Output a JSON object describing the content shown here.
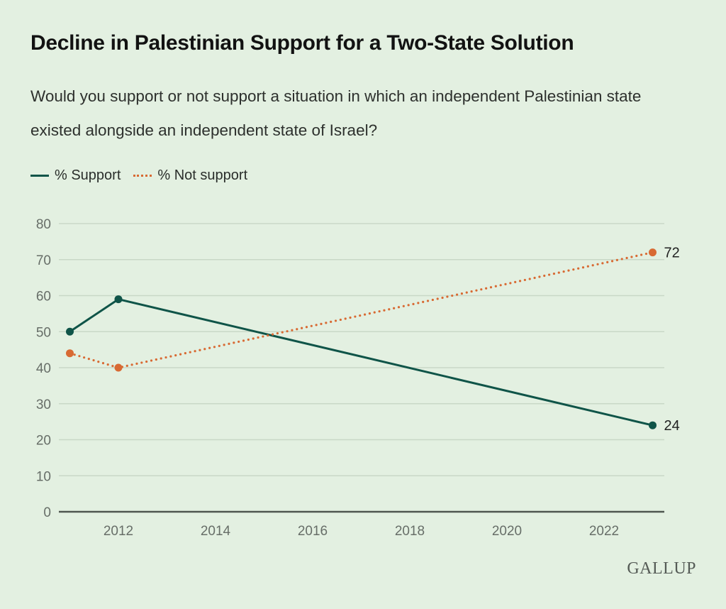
{
  "chart_data": {
    "type": "line",
    "title": "Decline in Palestinian Support for a Two-State Solution",
    "subtitle": "Would you support or not support a situation in which an independent Palestinian state existed alongside an independent state of Israel?",
    "xlabel": "",
    "ylabel": "",
    "x_ticks": [
      "2012",
      "2014",
      "2016",
      "2018",
      "2020",
      "2022"
    ],
    "x_tick_values": [
      2012,
      2014,
      2016,
      2018,
      2020,
      2022
    ],
    "xlim": [
      2010.8,
      2023.25
    ],
    "y_ticks": [
      0,
      10,
      20,
      30,
      40,
      50,
      60,
      70,
      80
    ],
    "ylim": [
      0,
      80
    ],
    "grid": true,
    "legend_position": "top-left",
    "series": [
      {
        "name": "% Support",
        "color": "#0f5448",
        "style": "solid",
        "x": [
          2011,
          2012,
          2023
        ],
        "values": [
          50,
          59,
          24
        ],
        "end_label": "24"
      },
      {
        "name": "% Not support",
        "color": "#d86a33",
        "style": "dotted",
        "x": [
          2011,
          2012,
          2023
        ],
        "values": [
          44,
          40,
          72
        ],
        "end_label": "72"
      }
    ]
  },
  "brand": "GALLUP"
}
